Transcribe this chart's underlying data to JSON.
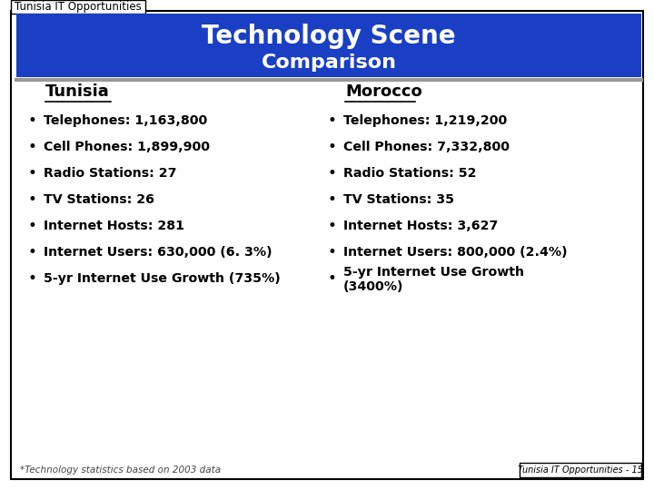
{
  "slide_title": "Tunisia IT Opportunities",
  "header_title": "Technology Scene",
  "header_subtitle": "Comparison",
  "header_bg_color": "#1a3fc4",
  "header_text_color": "#ffffff",
  "bg_color": "#ffffff",
  "border_color": "#000000",
  "tunisia_header": "Tunisia",
  "morocco_header": "Morocco",
  "tunisia_items": [
    "Telephones: 1,163,800",
    "Cell Phones: 1,899,900",
    "Radio Stations: 27",
    "TV Stations: 26",
    "Internet Hosts: 281",
    "Internet Users: 630,000 (6. 3%)",
    "5-yr Internet Use Growth (735%)"
  ],
  "morocco_items": [
    "Telephones: 1,219,200",
    "Cell Phones: 7,332,800",
    "Radio Stations: 52",
    "TV Stations: 35",
    "Internet Hosts: 3,627",
    "Internet Users: 800,000 (2.4%)",
    "5-yr Internet Use Growth\n(3400%)"
  ],
  "footer_note": "*Technology statistics based on 2003 data",
  "footer_label": "Tunisia IT Opportunities - 15",
  "text_color": "#000000",
  "item_font_size": 10.2,
  "header_font_size": 20,
  "subheader_font_size": 13,
  "title_tab_font_size": 8.5
}
